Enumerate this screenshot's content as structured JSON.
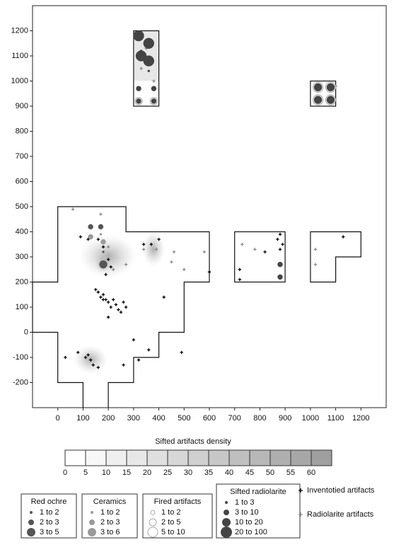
{
  "chart_data": {
    "type": "scatter",
    "xlim": [
      -100,
      1300
    ],
    "ylim": [
      -300,
      1300
    ],
    "xticks": [
      0,
      100,
      200,
      300,
      400,
      500,
      600,
      700,
      800,
      900,
      1000,
      1100,
      1200
    ],
    "yticks": [
      -200,
      -100,
      0,
      100,
      200,
      300,
      400,
      500,
      600,
      700,
      800,
      900,
      1000,
      1100,
      1200
    ],
    "series": [
      {
        "name": "Inventotied artifacts",
        "color": "#000000",
        "x": [
          160,
          170,
          180,
          190,
          200,
          210,
          220,
          230,
          240,
          250,
          260,
          270,
          200,
          180,
          150,
          80,
          110,
          130,
          140,
          160,
          120,
          30,
          90,
          120,
          160,
          180,
          200,
          210,
          300,
          320,
          360,
          490,
          420,
          600,
          720,
          720,
          820,
          880,
          870,
          880,
          890,
          1130,
          370,
          400,
          340,
          190,
          260
        ],
        "y": [
          160,
          140,
          150,
          130,
          120,
          100,
          130,
          110,
          90,
          80,
          120,
          100,
          60,
          130,
          170,
          -80,
          -100,
          -110,
          -130,
          -140,
          -90,
          -100,
          380,
          370,
          370,
          340,
          290,
          260,
          -30,
          -110,
          -70,
          -80,
          140,
          240,
          250,
          210,
          320,
          330,
          370,
          390,
          350,
          380,
          350,
          370,
          350,
          230,
          -130
        ]
      },
      {
        "name": "Radiolarite artifacts",
        "color": "#8a8a8a",
        "x": [
          60,
          170,
          200,
          270,
          340,
          390,
          460,
          450,
          500,
          580,
          730,
          780,
          1020,
          1020,
          1100,
          330,
          350,
          380,
          220
        ],
        "y": [
          490,
          470,
          340,
          270,
          330,
          330,
          320,
          280,
          250,
          320,
          350,
          330,
          330,
          270,
          980,
          1050,
          1130,
          1000,
          250
        ]
      }
    ],
    "legend_groups": [
      {
        "title": "Red ochre",
        "color": "#555555",
        "classes": [
          {
            "label": "1 to 2",
            "x": [
              180
            ],
            "y": [
              320
            ]
          },
          {
            "label": "2 to 3",
            "x": [
              130,
              170
            ],
            "y": [
              420,
              420
            ]
          },
          {
            "label": "3 to 5",
            "x": [
              180
            ],
            "y": [
              270
            ]
          }
        ]
      },
      {
        "title": "Ceramics",
        "color": "#9a9a9a",
        "classes": [
          {
            "label": "1 to 2",
            "x": [
              170
            ],
            "y": [
              390
            ]
          },
          {
            "label": "2 to 3",
            "x": [
              130,
              180
            ],
            "y": [
              380,
              360
            ]
          },
          {
            "label": "3 to 6",
            "x": [],
            "y": []
          }
        ]
      },
      {
        "title": "Fired artifacts",
        "color": "#aaaaaa",
        "open": true,
        "classes": [
          {
            "label": "1 to 2",
            "x": [],
            "y": []
          },
          {
            "label": "2 to 5",
            "x": [
              320,
              380
            ],
            "y": [
              920,
              920
            ]
          },
          {
            "label": "5 to 10",
            "x": [
              1030,
              1080,
              1030,
              1080
            ],
            "y": [
              975,
              975,
              925,
              925
            ]
          }
        ]
      },
      {
        "title": "Sifted radiolarite",
        "color": "#444444",
        "classes": [
          {
            "label": "1 to 3",
            "x": [
              360,
              330
            ],
            "y": [
              1040,
              1120
            ]
          },
          {
            "label": "3 to 10",
            "x": [
              320,
              380,
              320,
              380,
              880,
              880
            ],
            "y": [
              970,
              970,
              920,
              920,
              270,
              220
            ]
          },
          {
            "label": "10 to 20",
            "x": [
              1030,
              1080,
              1030,
              1080
            ],
            "y": [
              975,
              975,
              925,
              925
            ]
          },
          {
            "label": "20 to 100",
            "x": [
              320,
              360,
              330,
              360
            ],
            "y": [
              1180,
              1150,
              1100,
              1080
            ]
          }
        ]
      }
    ],
    "density_scale": {
      "title": "Sifted artifacts density",
      "ticks": [
        0,
        5,
        10,
        15,
        20,
        25,
        30,
        35,
        40,
        45,
        50,
        55,
        60
      ]
    }
  }
}
